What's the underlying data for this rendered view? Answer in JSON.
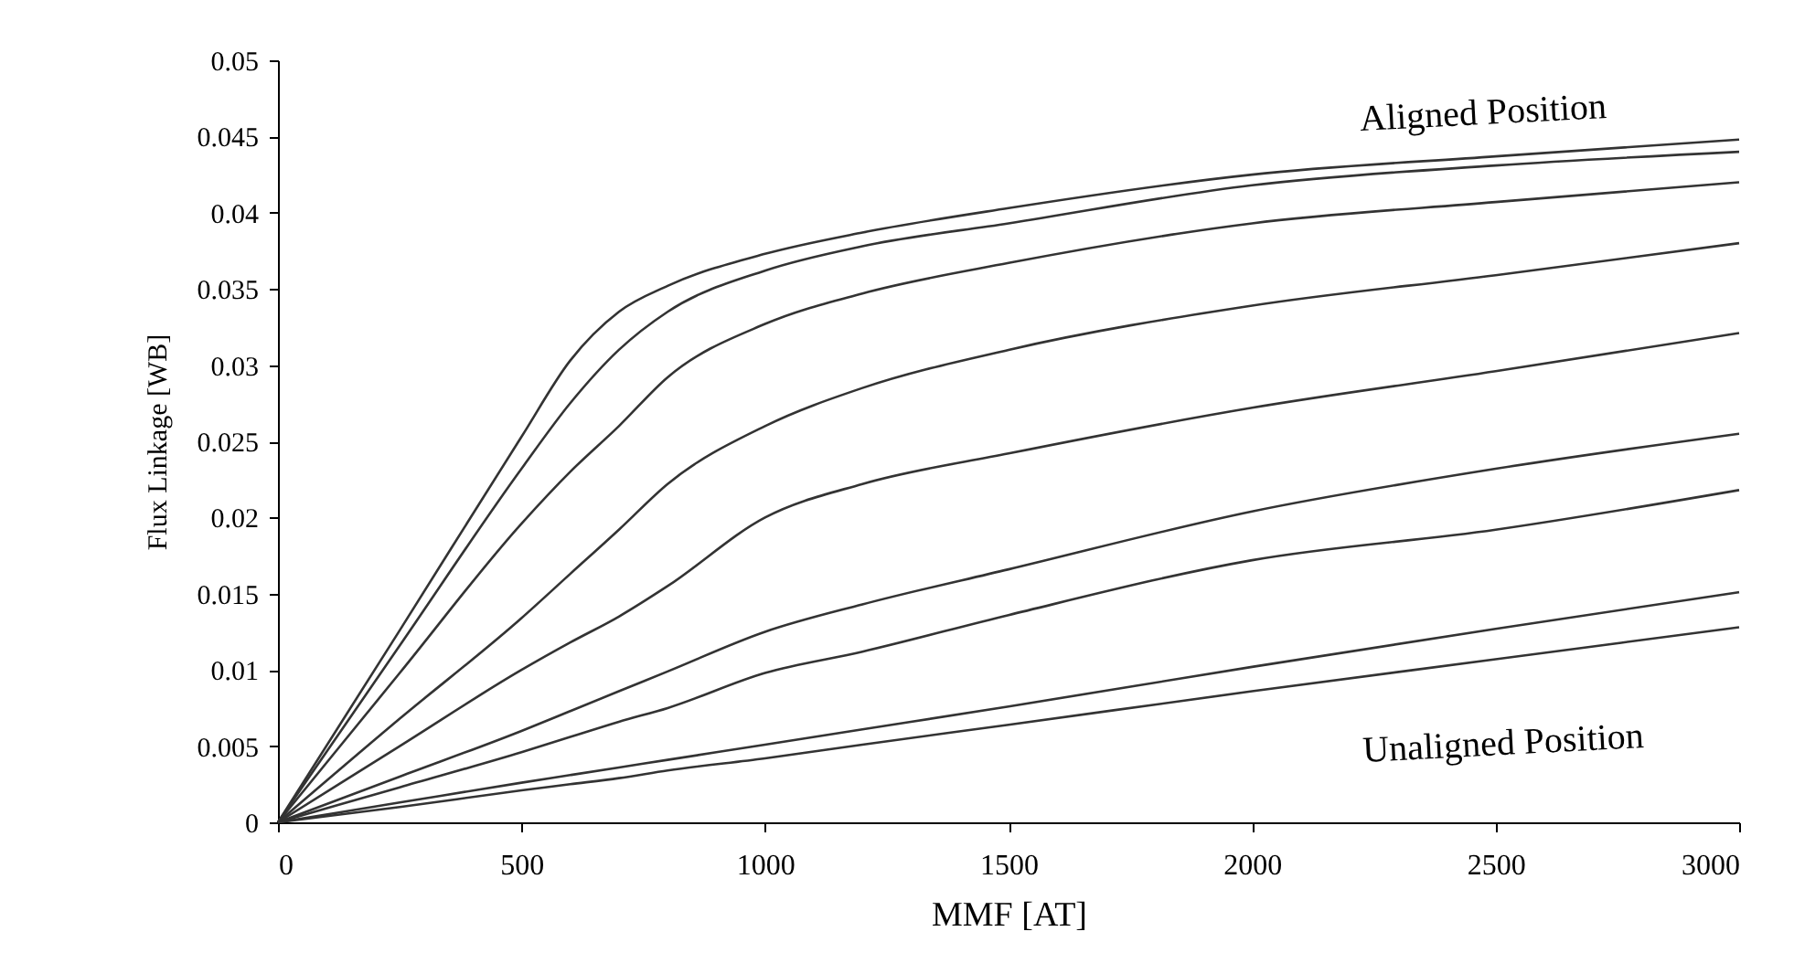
{
  "chart_data": {
    "type": "line",
    "xlabel": "MMF  [AT]",
    "ylabel": "Flux Linkage  [WB]",
    "x": [
      0,
      250,
      500,
      600,
      700,
      800,
      1000,
      1200,
      1500,
      2000,
      2500,
      3000
    ],
    "series": [
      {
        "color": "#333333",
        "values": [
          0,
          0.0126,
          0.0253,
          0.0303,
          0.0335,
          0.0352,
          0.0373,
          0.0387,
          0.0403,
          0.0425,
          0.0437,
          0.0448
        ]
      },
      {
        "color": "#333333",
        "values": [
          0,
          0.0116,
          0.0232,
          0.0275,
          0.031,
          0.0335,
          0.0362,
          0.0378,
          0.0393,
          0.0418,
          0.0431,
          0.044
        ]
      },
      {
        "color": "#333333",
        "values": [
          0,
          0.0098,
          0.0196,
          0.023,
          0.026,
          0.0292,
          0.0327,
          0.0347,
          0.0367,
          0.0393,
          0.0407,
          0.042
        ]
      },
      {
        "color": "#333333",
        "values": [
          0,
          0.0068,
          0.0134,
          0.0163,
          0.0192,
          0.0222,
          0.026,
          0.0285,
          0.031,
          0.0339,
          0.0359,
          0.038
        ]
      },
      {
        "color": "#333333",
        "values": [
          0,
          0.005,
          0.01,
          0.0118,
          0.0135,
          0.0155,
          0.02,
          0.0222,
          0.0242,
          0.0272,
          0.0296,
          0.0321
        ]
      },
      {
        "color": "#333333",
        "values": [
          0,
          0.003,
          0.006,
          0.0073,
          0.0086,
          0.0099,
          0.0125,
          0.0143,
          0.0166,
          0.0204,
          0.0232,
          0.0255
        ]
      },
      {
        "color": "#333333",
        "values": [
          0,
          0.0023,
          0.0046,
          0.0056,
          0.0066,
          0.0075,
          0.0098,
          0.0112,
          0.0136,
          0.0172,
          0.0192,
          0.0218
        ]
      },
      {
        "color": "#333333",
        "values": [
          0,
          0.0013,
          0.0026,
          0.0031,
          0.0036,
          0.0041,
          0.0051,
          0.0061,
          0.0076,
          0.0102,
          0.0127,
          0.0151
        ]
      },
      {
        "color": "#333333",
        "values": [
          0,
          0.001,
          0.0021,
          0.0025,
          0.0029,
          0.0034,
          0.0042,
          0.0051,
          0.0064,
          0.0086,
          0.0107,
          0.0128
        ]
      }
    ],
    "annotations": [
      "Aligned Position",
      "Unaligned Position"
    ],
    "xlim": [
      0,
      3000
    ],
    "xticks": [
      0,
      500,
      1000,
      1500,
      2000,
      2500,
      3000
    ],
    "ylim": [
      0,
      0.05
    ],
    "yticks": [
      0,
      0.005,
      0.01,
      0.015,
      0.02,
      0.025,
      0.03,
      0.035,
      0.04,
      0.045,
      0.05
    ],
    "grid": false,
    "legend": false,
    "marker": "none",
    "line_style": "solid"
  }
}
